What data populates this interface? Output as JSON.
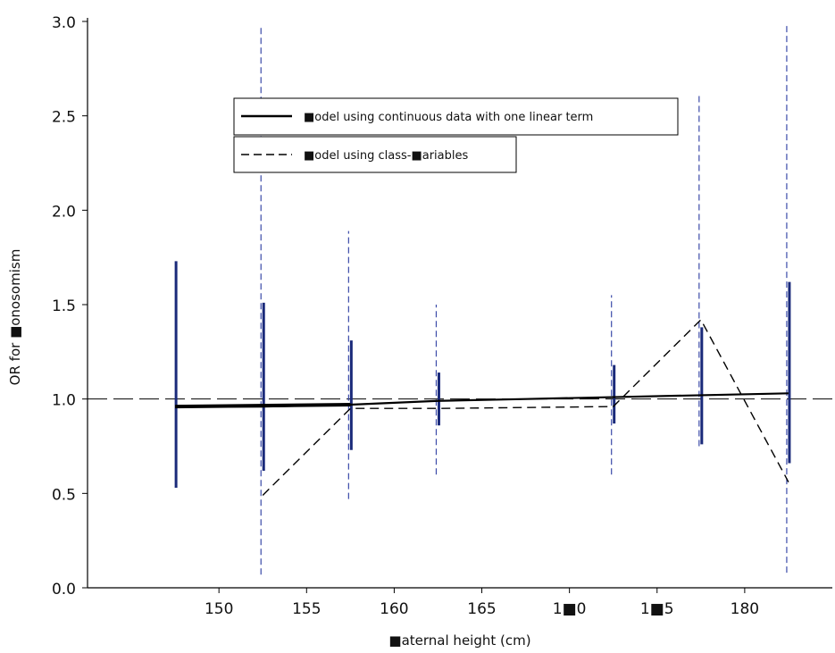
{
  "chart_data": {
    "type": "line",
    "xlabel": "■aternal height (cm)",
    "ylabel": "OR for ■onosomism",
    "xlim": [
      142.5,
      185
    ],
    "ylim": [
      0,
      3
    ],
    "x_ticks": [
      150,
      155,
      160,
      165,
      170,
      175,
      180
    ],
    "x_tick_labels": [
      "150",
      "155",
      "160",
      "165",
      "1■0",
      "1■5",
      "180"
    ],
    "y_ticks": [
      0,
      0.5,
      1,
      1.5,
      2,
      2.5,
      3
    ],
    "y_tick_labels": [
      "0.0",
      "0.5",
      "1.0",
      "1.5",
      "2.0",
      "2.5",
      "3.0"
    ],
    "reference_line": {
      "y": 1.0,
      "style": "long-dash"
    },
    "grid": false,
    "legend_position": "top-left",
    "series": [
      {
        "name": "■odel using continuous data with one linear term",
        "style": "solid",
        "color": "#000000",
        "x": [
          147.5,
          152.5,
          157.5,
          162.5,
          167.5,
          172.5,
          177.5,
          182.5
        ],
        "y": [
          0.96,
          0.96,
          0.97,
          0.99,
          1.0,
          1.01,
          1.02,
          1.03
        ],
        "ci_low": [
          0.53,
          0.62,
          0.73,
          0.86,
          null,
          0.87,
          0.76,
          0.66
        ],
        "ci_high": [
          1.73,
          1.51,
          1.31,
          1.14,
          null,
          1.18,
          1.38,
          1.62
        ]
      },
      {
        "name": "■odel using class-■ariables",
        "style": "dashed",
        "color": "#000000",
        "x": [
          152.5,
          157.5,
          162.5,
          172.5,
          177.5,
          182.5
        ],
        "y": [
          0.49,
          0.95,
          0.95,
          0.96,
          1.42,
          0.56
        ],
        "ci_low": [
          0.07,
          0.47,
          0.6,
          0.6,
          0.75,
          0.08
        ],
        "ci_high": [
          2.98,
          1.89,
          1.5,
          1.55,
          2.62,
          2.98
        ]
      }
    ],
    "colors": {
      "ci_bar": "#1a2a7a",
      "ci_dashed": "#3a4aa8",
      "line": "#000000"
    }
  }
}
